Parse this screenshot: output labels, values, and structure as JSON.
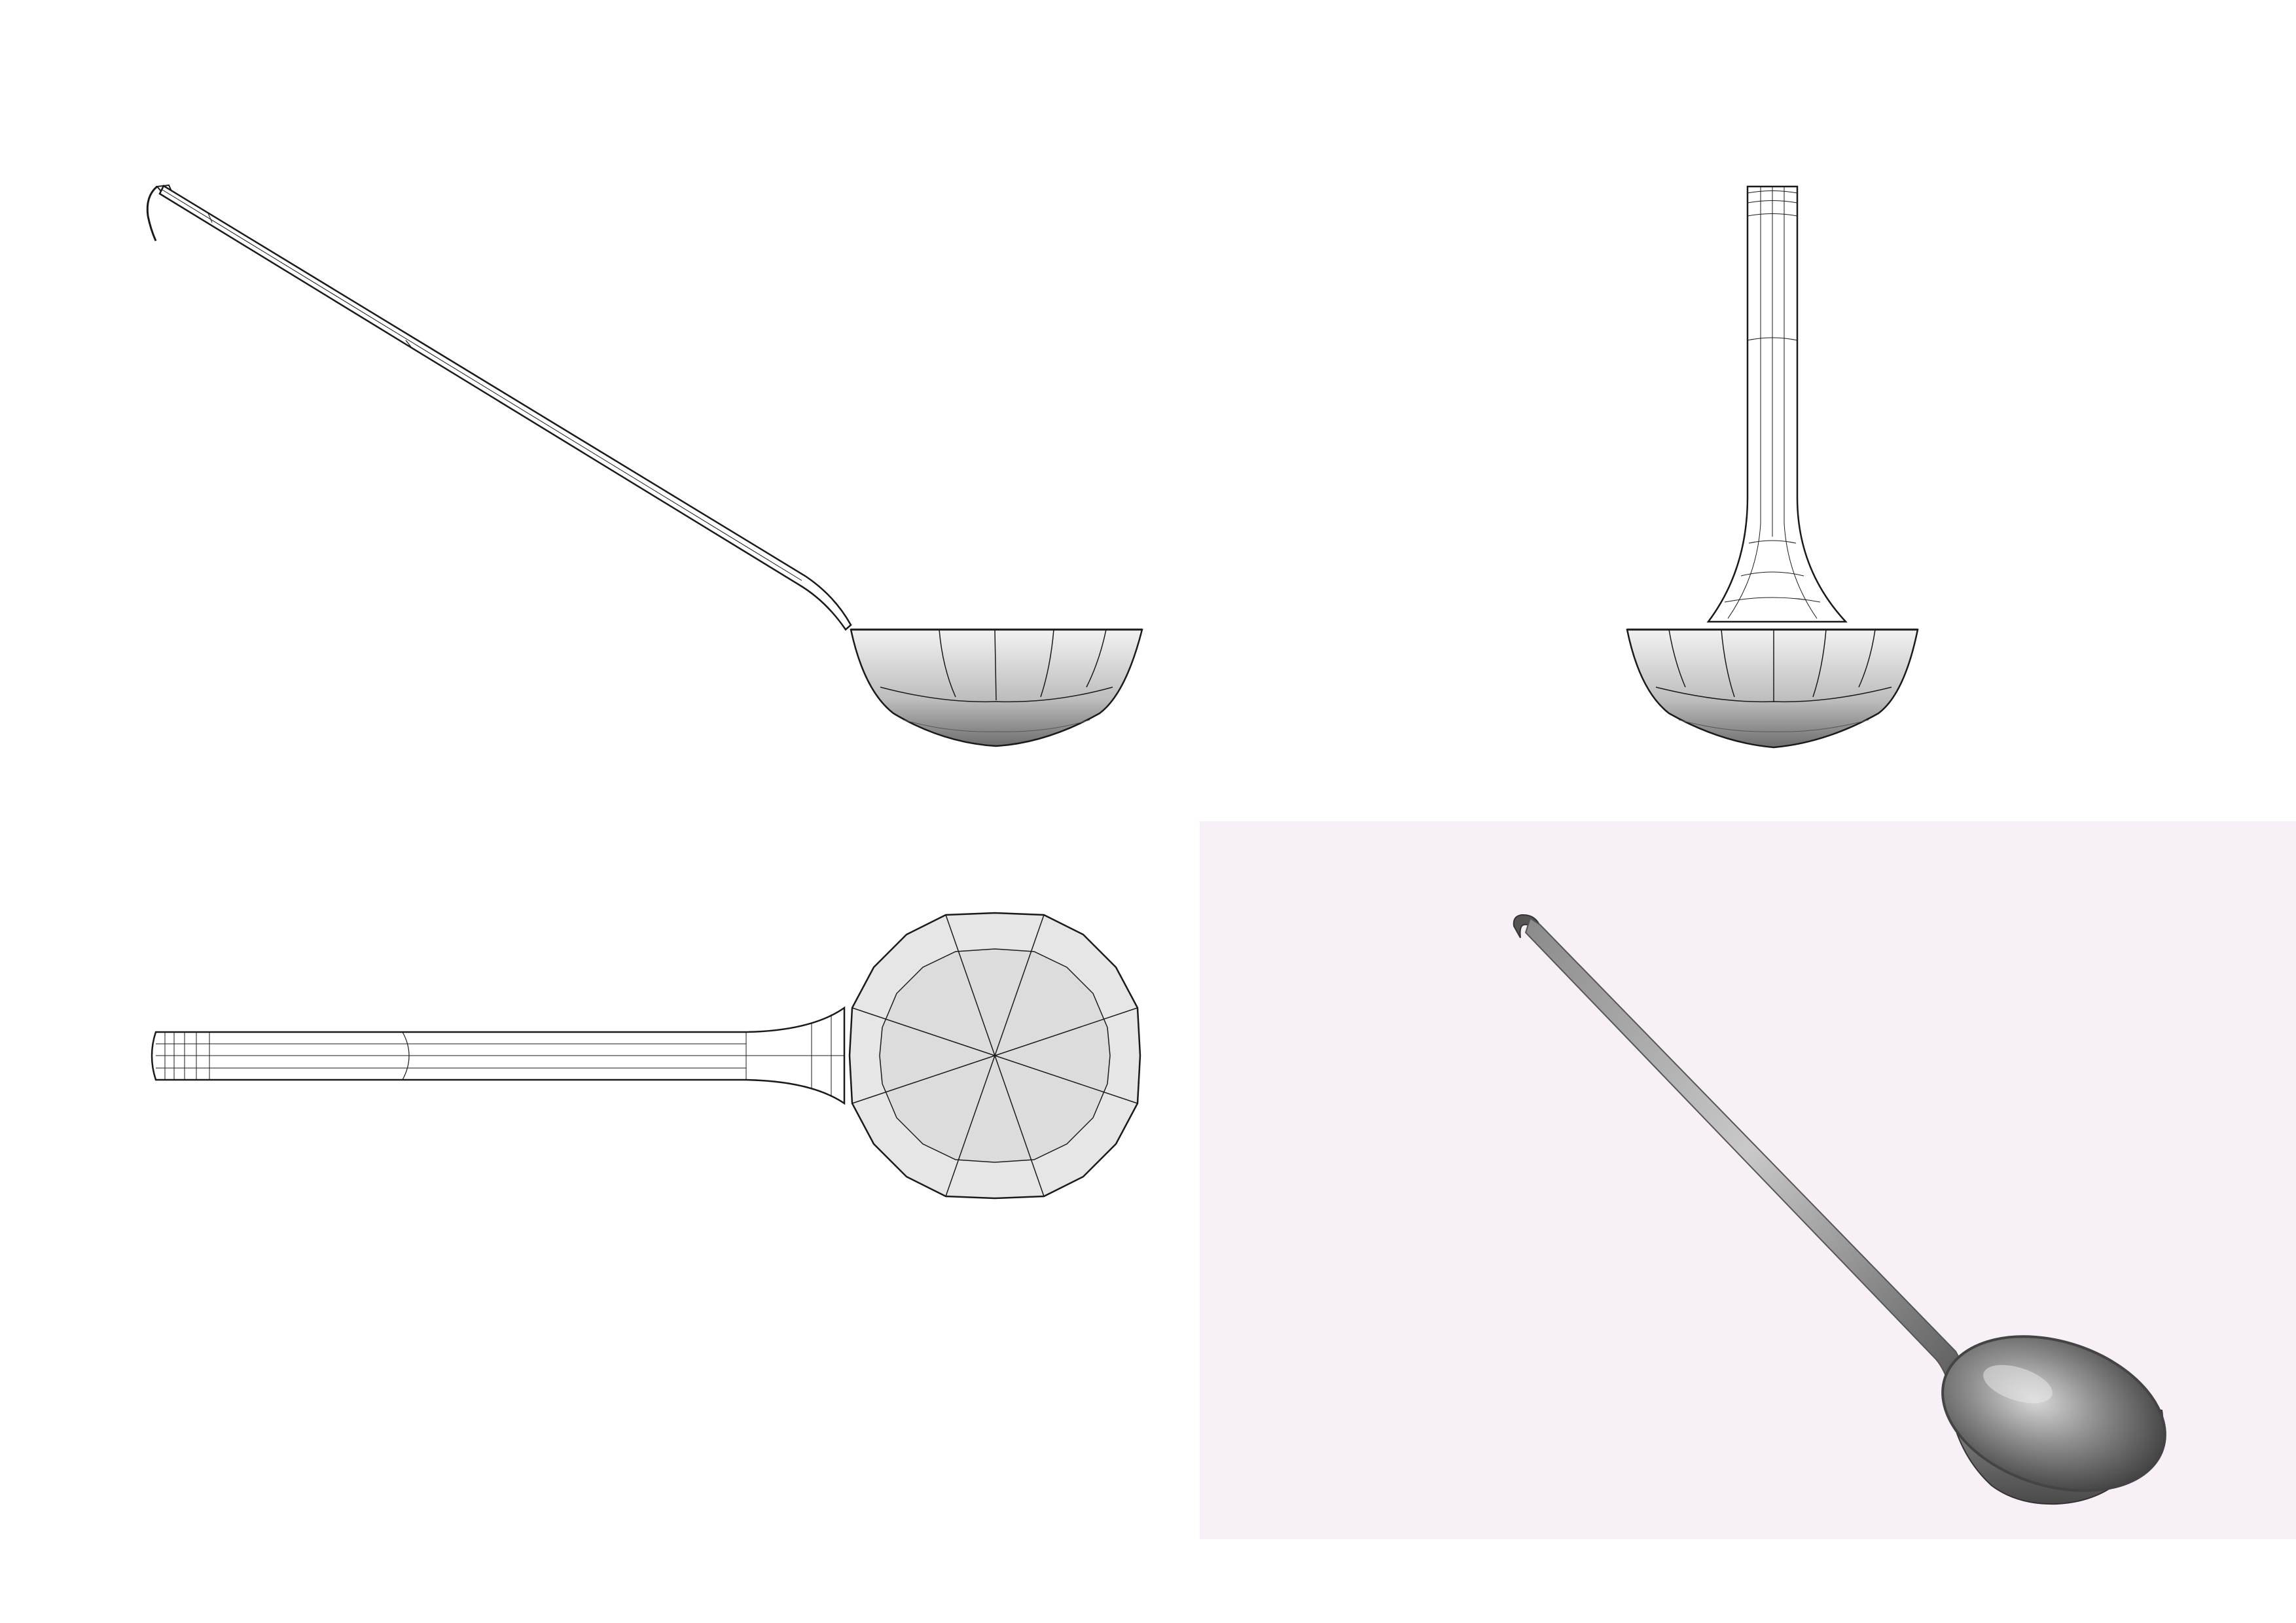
{
  "views": [
    {
      "id": "side-view",
      "kind": "wireframe"
    },
    {
      "id": "front-view",
      "kind": "wireframe"
    },
    {
      "id": "top-view",
      "kind": "wireframe"
    },
    {
      "id": "reference-photo",
      "kind": "photograph"
    }
  ],
  "colors": {
    "background": "#ffffff",
    "wireframe_line": "#1a1a1a",
    "mesh_fill_light": "#e6e6e6",
    "mesh_fill_dark": "#6e6e6e",
    "photo_background": "#f7f1f7",
    "metal_light": "#c9c9c9",
    "metal_dark": "#4a4a4a"
  }
}
